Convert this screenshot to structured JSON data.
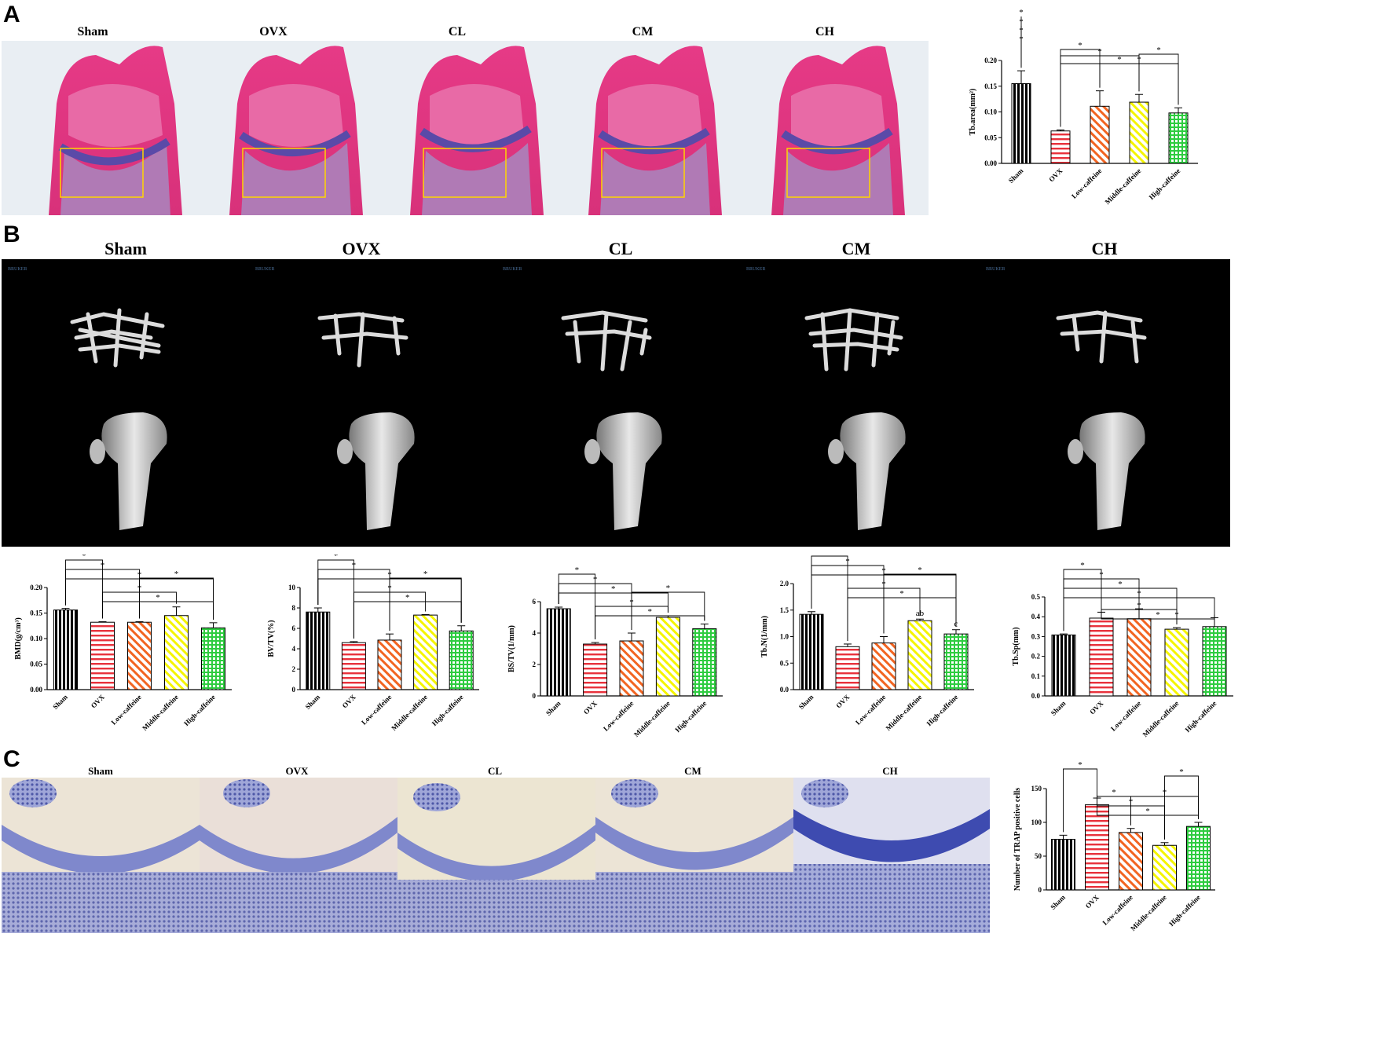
{
  "panel_letters": [
    "A",
    "B",
    "C"
  ],
  "panel_a": {
    "group_labels": [
      "Sham",
      "OVX",
      "CL",
      "CM",
      "CH"
    ]
  },
  "panel_b": {
    "group_labels": [
      "Sham",
      "OVX",
      "CL",
      "CM",
      "CH"
    ],
    "scanner_logo_text": "BRUKER"
  },
  "panel_c": {
    "group_labels": [
      "Sham",
      "OVX",
      "CL",
      "CM",
      "CH"
    ]
  },
  "colors": {
    "sham": "#000000",
    "ovx": "#e8323c",
    "low": "#f26522",
    "middle": "#f5f500",
    "high": "#2ecc40"
  },
  "chart_data": [
    {
      "id": "tb_area",
      "type": "bar",
      "categories": [
        "Sham",
        "OVX",
        "Low-caffeine",
        "Middle-caffeine",
        "High-caffeine"
      ],
      "values": [
        0.155,
        0.063,
        0.111,
        0.119,
        0.098
      ],
      "errors": [
        0.025,
        0.002,
        0.03,
        0.015,
        0.01
      ],
      "ylabel": "Tb.area(mm²)",
      "ylim": [
        0,
        0.2
      ],
      "yticks": [
        "0.00",
        "0.05",
        "0.10",
        "0.15",
        "0.20"
      ],
      "sig_marks": [
        "*",
        "*",
        "*",
        "*",
        "*",
        "*",
        "*",
        "*",
        "*"
      ],
      "letters": []
    },
    {
      "id": "bmd",
      "type": "bar",
      "categories": [
        "Sham",
        "OVX",
        "Low-caffeine",
        "Middle-caffeine",
        "High-caffeine"
      ],
      "values": [
        0.156,
        0.132,
        0.132,
        0.145,
        0.121
      ],
      "errors": [
        0.003,
        0.001,
        0.001,
        0.017,
        0.01
      ],
      "ylabel": "BMD(g/cm³)",
      "ylim": [
        0,
        0.2
      ],
      "yticks": [
        "0.00",
        "0.05",
        "0.10",
        "0.15",
        "0.20"
      ],
      "sig_marks": [
        "*",
        "*",
        "*",
        "*",
        "*",
        "*"
      ],
      "letters": []
    },
    {
      "id": "bv_tv",
      "type": "bar",
      "categories": [
        "Sham",
        "OVX",
        "Low-caffeine",
        "Middle-caffeine",
        "High-caffeine"
      ],
      "values": [
        7.6,
        4.6,
        4.85,
        7.3,
        5.75
      ],
      "errors": [
        0.4,
        0.1,
        0.6,
        0.05,
        0.5
      ],
      "ylabel": "BV/TV(%)",
      "ylim": [
        0,
        10
      ],
      "yticks": [
        "0",
        "2",
        "4",
        "6",
        "8",
        "10"
      ],
      "sig_marks": [
        "*",
        "*",
        "*",
        "*",
        "*",
        "*"
      ],
      "letters": []
    },
    {
      "id": "bs_tv",
      "type": "bar",
      "categories": [
        "Sham",
        "OVX",
        "Low-caffeine",
        "Middle-caffeine",
        "High-caffeine"
      ],
      "values": [
        5.55,
        3.3,
        3.5,
        5.0,
        4.28
      ],
      "errors": [
        0.1,
        0.1,
        0.5,
        0.1,
        0.3
      ],
      "ylabel": "BS/TV(1/mm)",
      "ylim": [
        0,
        6
      ],
      "yticks": [
        "0",
        "2",
        "4",
        "6"
      ],
      "sig_marks": [
        "*",
        "*",
        "*",
        "*",
        "*",
        "*"
      ],
      "letters": []
    },
    {
      "id": "tb_n",
      "type": "bar",
      "categories": [
        "Sham",
        "OVX",
        "Low-caffeine",
        "Middle-caffeine",
        "High-caffeine"
      ],
      "values": [
        1.42,
        0.81,
        0.88,
        1.3,
        1.05
      ],
      "errors": [
        0.05,
        0.05,
        0.12,
        0.03,
        0.08
      ],
      "ylabel": "Tb.N(1/mm)",
      "ylim": [
        0,
        2
      ],
      "yticks": [
        "0.0",
        "0.5",
        "1.0",
        "1.5",
        "2.0"
      ],
      "sig_marks": [
        "*",
        "*",
        "*",
        "*",
        "*",
        "*"
      ],
      "letters": [
        "",
        "",
        "",
        "ab",
        "c"
      ]
    },
    {
      "id": "tb_sp",
      "type": "bar",
      "categories": [
        "Sham",
        "OVX",
        "Low-caffeine",
        "Middle-caffeine",
        "High-caffeine"
      ],
      "values": [
        0.308,
        0.393,
        0.39,
        0.337,
        0.35
      ],
      "errors": [
        0.005,
        0.03,
        0.05,
        0.008,
        0.045
      ],
      "ylabel": "Tb.Sp(mm)",
      "ylim": [
        0,
        0.5
      ],
      "yticks": [
        "0.0",
        "0.1",
        "0.2",
        "0.3",
        "0.4",
        "0.5"
      ],
      "sig_marks": [
        "*",
        "*",
        "*",
        "*",
        "*",
        "*",
        "*"
      ],
      "letters": []
    },
    {
      "id": "trap",
      "type": "bar",
      "categories": [
        "Sham",
        "OVX",
        "Low-caffeine",
        "Middle-caffeine",
        "High-caffeine"
      ],
      "values": [
        75,
        126,
        85,
        66,
        94
      ],
      "errors": [
        6,
        10,
        6,
        4,
        6
      ],
      "ylabel": "Number of TRAP positive cells",
      "ylim": [
        0,
        150
      ],
      "yticks": [
        "0",
        "50",
        "100",
        "150"
      ],
      "sig_marks": [
        "*",
        "*",
        "*",
        "*",
        "*",
        "*"
      ],
      "letters": []
    }
  ]
}
